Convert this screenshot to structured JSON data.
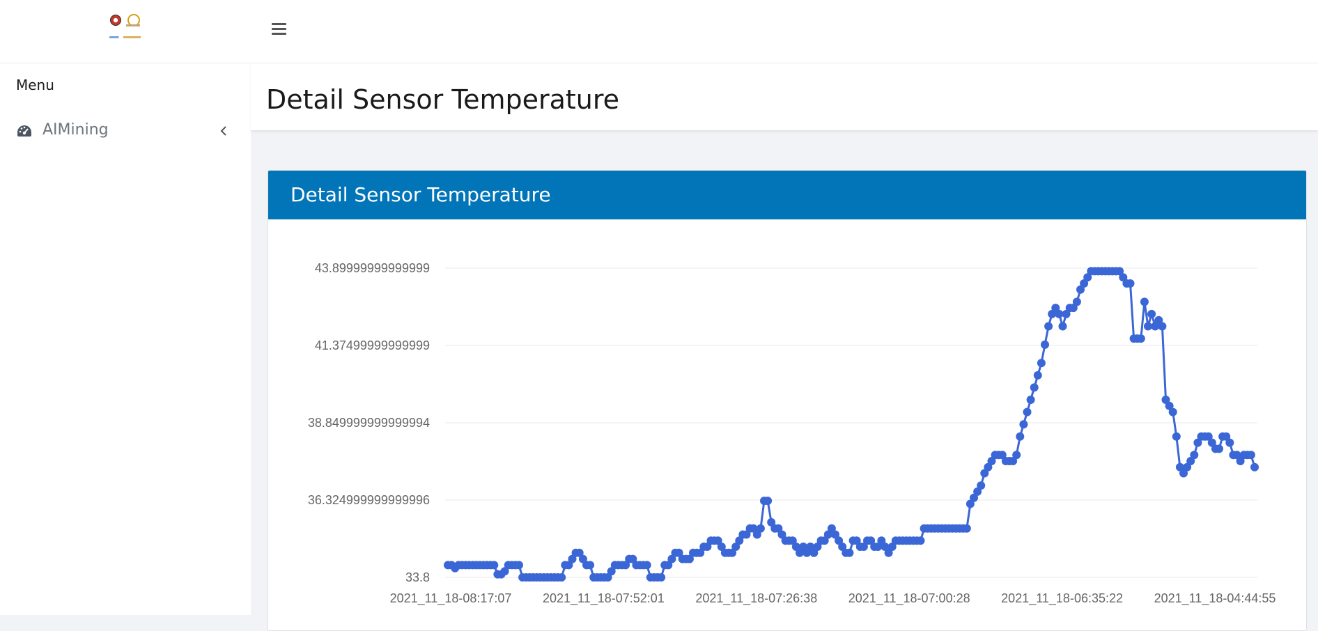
{
  "sidebar": {
    "menu_title": "Menu",
    "nav_item": {
      "label": "AIMining",
      "icon": "dashboard-gauge-icon"
    }
  },
  "topbar": {
    "toggle_icon": "hamburger-menu-icon"
  },
  "page": {
    "title": "Detail Sensor Temperature"
  },
  "card": {
    "title": "Detail Sensor Temperature"
  },
  "colors": {
    "accent": "#0275b8",
    "series": "#3b66d6"
  },
  "chart_data": {
    "type": "line",
    "title": "",
    "xlabel": "",
    "ylabel": "",
    "ylim": [
      33.8,
      43.9
    ],
    "grid": true,
    "y_tick_labels": [
      "33.8",
      "36.324999999999996",
      "38.849999999999994",
      "41.37499999999999",
      "43.89999999999999"
    ],
    "x_tick_labels": [
      "2021_11_18-08:17:07",
      "2021_11_18-07:52:01",
      "2021_11_18-07:26:38",
      "2021_11_18-07:00:28",
      "2021_11_18-06:35:22",
      "2021_11_18-04:44:55"
    ],
    "series": [
      {
        "values": [
          34.2,
          34.2,
          34.1,
          34.2,
          34.2,
          34.2,
          34.2,
          34.2,
          34.2,
          34.2,
          34.2,
          34.2,
          34.2,
          34.2,
          33.9,
          33.9,
          34,
          34.2,
          34.2,
          34.2,
          34.2,
          33.8,
          33.8,
          33.8,
          33.8,
          33.8,
          33.8,
          33.8,
          33.8,
          33.8,
          33.8,
          33.8,
          33.8,
          34.2,
          34.2,
          34.4,
          34.6,
          34.6,
          34.4,
          34.2,
          34.2,
          33.8,
          33.8,
          33.8,
          33.8,
          33.8,
          34,
          34.2,
          34.2,
          34.2,
          34.2,
          34.4,
          34.4,
          34.2,
          34.2,
          34.2,
          34.2,
          33.8,
          33.8,
          33.8,
          33.8,
          34.2,
          34.2,
          34.4,
          34.6,
          34.6,
          34.4,
          34.4,
          34.4,
          34.6,
          34.6,
          34.6,
          34.8,
          34.8,
          35,
          35,
          35,
          34.8,
          34.6,
          34.6,
          34.6,
          34.8,
          35,
          35.2,
          35.2,
          35.4,
          35.4,
          35.2,
          35.4,
          36.3,
          36.3,
          35.6,
          35.4,
          35.4,
          35.2,
          35,
          35,
          35,
          34.8,
          34.6,
          34.8,
          34.6,
          34.8,
          34.6,
          34.8,
          35,
          35,
          35.2,
          35.4,
          35.2,
          35,
          34.8,
          34.6,
          34.6,
          35,
          35,
          34.8,
          34.8,
          35,
          35,
          34.8,
          34.8,
          35,
          34.8,
          34.6,
          34.8,
          35,
          35,
          35,
          35,
          35,
          35,
          35,
          35,
          35.4,
          35.4,
          35.4,
          35.4,
          35.4,
          35.4,
          35.4,
          35.4,
          35.4,
          35.4,
          35.4,
          35.4,
          35.4,
          36.2,
          36.4,
          36.6,
          36.8,
          37.2,
          37.4,
          37.6,
          37.8,
          37.8,
          37.8,
          37.6,
          37.6,
          37.6,
          37.8,
          38.4,
          38.8,
          39.2,
          39.6,
          40,
          40.4,
          40.8,
          41.4,
          42,
          42.4,
          42.6,
          42.4,
          42,
          42.4,
          42.6,
          42.6,
          42.8,
          43.2,
          43.4,
          43.6,
          43.8,
          43.8,
          43.8,
          43.8,
          43.8,
          43.8,
          43.8,
          43.8,
          43.8,
          43.6,
          43.4,
          43.4,
          41.6,
          41.6,
          41.6,
          42.8,
          42,
          42.4,
          42,
          42.2,
          42,
          39.6,
          39.4,
          39.2,
          38.4,
          37.4,
          37.2,
          37.4,
          37.6,
          37.8,
          38.2,
          38.4,
          38.4,
          38.4,
          38.2,
          38,
          38,
          38.4,
          38.4,
          38.2,
          37.8,
          37.8,
          37.6,
          37.8,
          37.8,
          37.8,
          37.4
        ]
      }
    ]
  }
}
